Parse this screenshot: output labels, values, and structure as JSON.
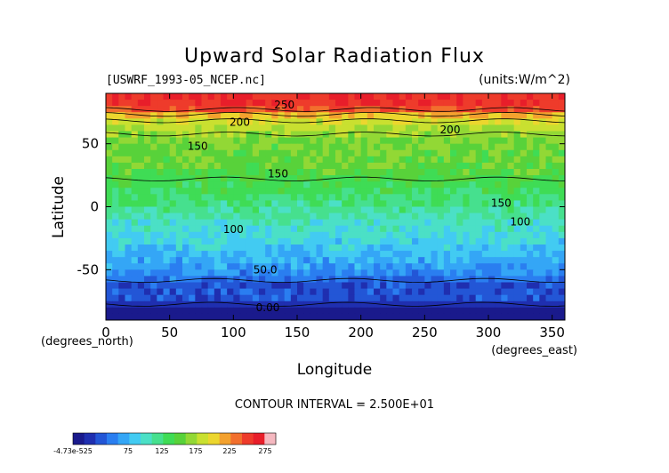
{
  "chart_data": {
    "type": "heatmap",
    "title": "Upward Solar Radiation Flux",
    "file_label": "[USWRF_1993-05_NCEP.nc]",
    "units_label": "(units:W/m^2)",
    "xlabel": "Longitude",
    "ylabel": "Latitude",
    "x_unit_label": "(degrees_east)",
    "y_unit_label": "(degrees_north)",
    "xlim": [
      0,
      360
    ],
    "ylim": [
      -90,
      90
    ],
    "x_ticks": [
      0,
      50,
      100,
      150,
      200,
      250,
      300,
      350
    ],
    "y_ticks": [
      -50,
      0,
      50
    ],
    "x_tick_labels": [
      "0",
      "50",
      "100",
      "150",
      "200",
      "250",
      "300",
      "350"
    ],
    "y_tick_labels": [
      "-50",
      "0",
      "50"
    ],
    "contour_interval_text": "CONTOUR INTERVAL = 2.500E+01",
    "contour_labels": [
      {
        "text": "250",
        "lon": 140,
        "lat": 81
      },
      {
        "text": "200",
        "lon": 105,
        "lat": 67
      },
      {
        "text": "200",
        "lon": 270,
        "lat": 61
      },
      {
        "text": "150",
        "lon": 72,
        "lat": 48
      },
      {
        "text": "150",
        "lon": 135,
        "lat": 26
      },
      {
        "text": "150",
        "lon": 310,
        "lat": 3
      },
      {
        "text": "100",
        "lon": 100,
        "lat": -18
      },
      {
        "text": "100",
        "lon": 325,
        "lat": -12
      },
      {
        "text": "50.0",
        "lon": 125,
        "lat": -50
      },
      {
        "text": "0.00",
        "lon": 127,
        "lat": -80
      }
    ],
    "lat_profile": [
      {
        "lat": -90,
        "value": 5
      },
      {
        "lat": -78,
        "value": 5
      },
      {
        "lat": -77,
        "value": 40
      },
      {
        "lat": -62,
        "value": 40
      },
      {
        "lat": -55,
        "value": 60
      },
      {
        "lat": -45,
        "value": 75
      },
      {
        "lat": -35,
        "value": 88
      },
      {
        "lat": -25,
        "value": 100
      },
      {
        "lat": -12,
        "value": 110
      },
      {
        "lat": 0,
        "value": 125
      },
      {
        "lat": 10,
        "value": 138
      },
      {
        "lat": 20,
        "value": 148
      },
      {
        "lat": 30,
        "value": 158
      },
      {
        "lat": 40,
        "value": 160
      },
      {
        "lat": 50,
        "value": 165
      },
      {
        "lat": 60,
        "value": 178
      },
      {
        "lat": 67,
        "value": 195
      },
      {
        "lat": 72,
        "value": 215
      },
      {
        "lat": 76,
        "value": 245
      },
      {
        "lat": 80,
        "value": 262
      },
      {
        "lat": 90,
        "value": 268
      }
    ],
    "colorbar": {
      "ticks": [
        "-4.73e-525",
        "75",
        "125",
        "175",
        "225",
        "275"
      ],
      "colors": [
        "#1a1a8c",
        "#1f2fb0",
        "#2356d6",
        "#2a7ef0",
        "#34a6f6",
        "#42cbf2",
        "#4be0c6",
        "#46e08e",
        "#3fdc55",
        "#58d23a",
        "#92d835",
        "#c9e030",
        "#ecd62e",
        "#f3a12e",
        "#f26f2d",
        "#ee3b2b",
        "#e81e2a",
        "#f5b8c0"
      ],
      "land_colors": [
        "#0000ff",
        "#007fff",
        "#00ffff",
        "#00ff7f",
        "#00ff00"
      ]
    }
  }
}
